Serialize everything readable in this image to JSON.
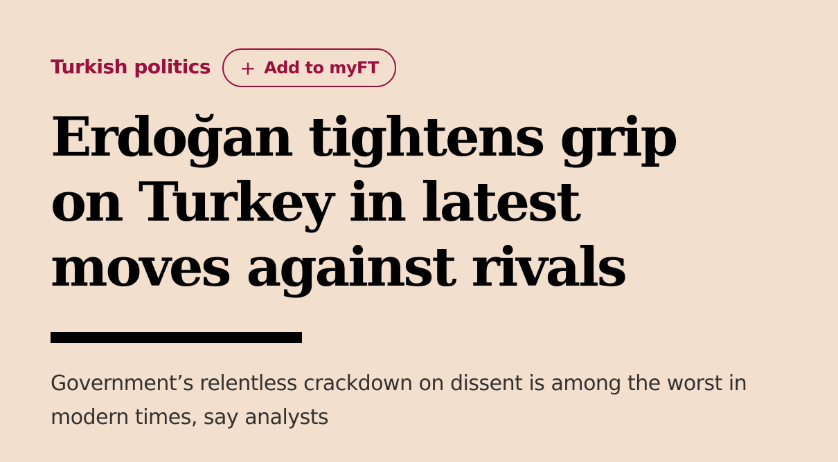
{
  "topic": "Turkish politics",
  "follow_button": "Add to myFT",
  "headline": "Erdoğan tightens grip on Turkey in latest moves against rivals",
  "standfirst": "Government’s relentless crackdown on dissent is among the worst in modern times, say analysts"
}
